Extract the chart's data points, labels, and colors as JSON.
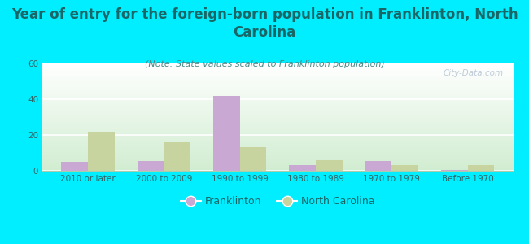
{
  "title": "Year of entry for the foreign-born population in Franklinton, North\nCarolina",
  "subtitle": "(Note: State values scaled to Franklinton population)",
  "categories": [
    "2010 or later",
    "2000 to 2009",
    "1990 to 1999",
    "1980 to 1989",
    "1970 to 1979",
    "Before 1970"
  ],
  "franklinton": [
    5,
    5.5,
    42,
    3,
    5.5,
    0.5
  ],
  "north_carolina": [
    22,
    16,
    13,
    6,
    3,
    3
  ],
  "franklinton_color": "#c9a8d4",
  "nc_color": "#c8d4a0",
  "background_color": "#00eeff",
  "ylim": [
    0,
    60
  ],
  "yticks": [
    0,
    20,
    40,
    60
  ],
  "bar_width": 0.35,
  "title_fontsize": 12,
  "subtitle_fontsize": 8,
  "tick_fontsize": 7.5,
  "legend_fontsize": 9,
  "title_color": "#1a6666",
  "subtitle_color": "#4a8888",
  "tick_color": "#336666",
  "watermark_text": "City-Data.com"
}
